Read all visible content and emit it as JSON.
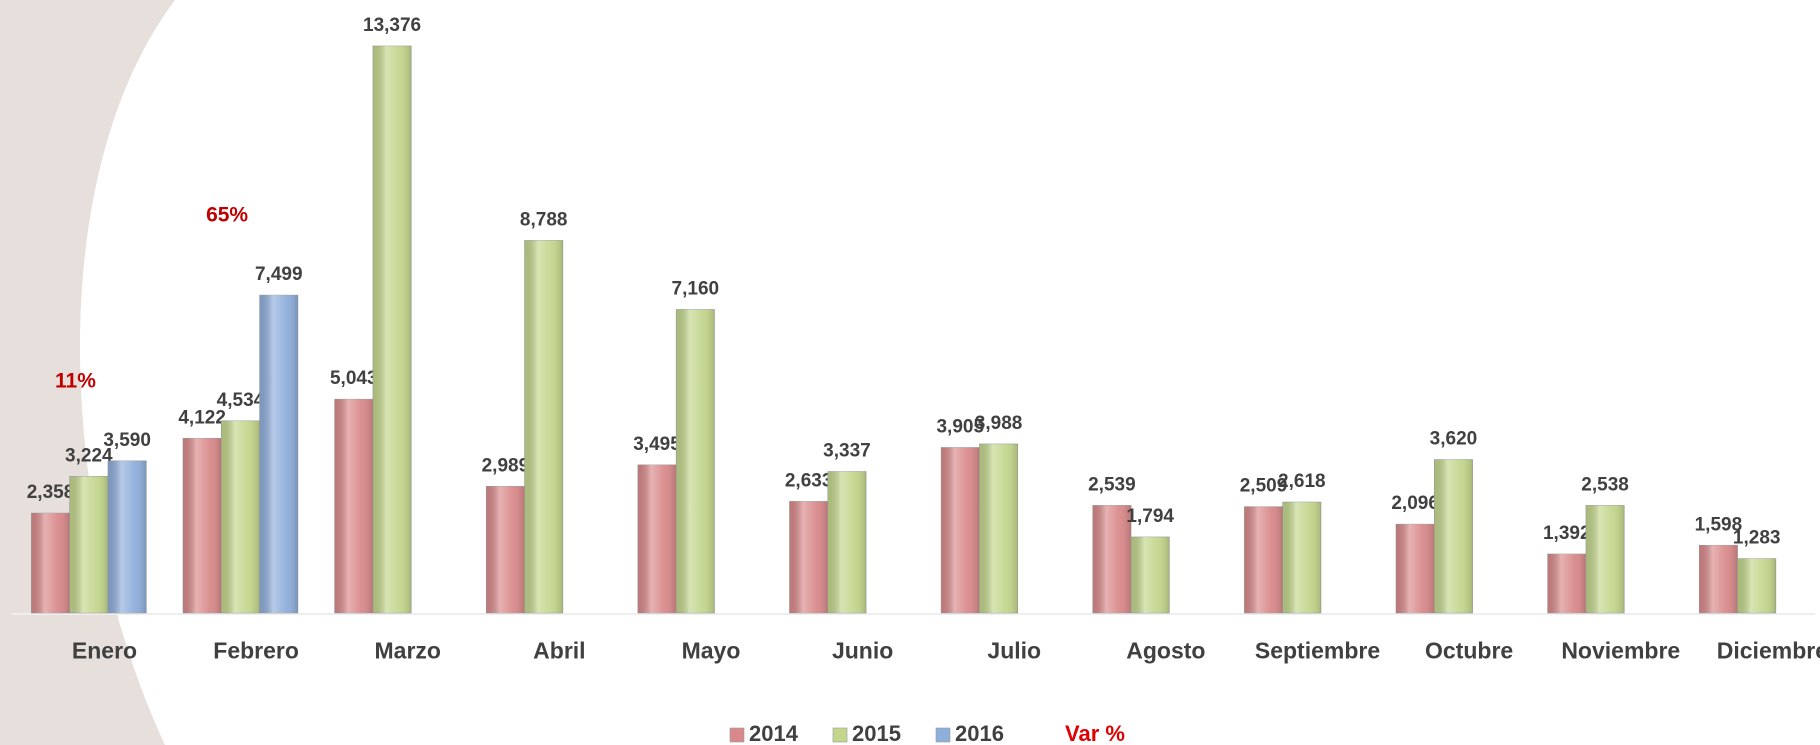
{
  "chart_data": {
    "type": "bar",
    "categories": [
      "Enero",
      "Febrero",
      "Marzo",
      "Abril",
      "Mayo",
      "Junio",
      "Julio",
      "Agosto",
      "Septiembre",
      "Octubre",
      "Noviembre",
      "Diciembre"
    ],
    "series": [
      {
        "name": "2014",
        "color": "#d9898a",
        "values": [
          2358,
          4122,
          5043,
          2989,
          3495,
          2633,
          3905,
          2539,
          2509,
          2096,
          1392,
          1598
        ],
        "value_labels": [
          "2,358",
          "4,122",
          "5,043",
          "2,989",
          "3,495",
          "2,633",
          "3,905",
          "2,539",
          "2,509",
          "2,096",
          "1,392",
          "1,598"
        ]
      },
      {
        "name": "2015",
        "color": "#c3d68c",
        "values": [
          3224,
          4534,
          13376,
          8788,
          7160,
          3337,
          3988,
          1794,
          2618,
          3620,
          2538,
          1283
        ],
        "value_labels": [
          "3,224",
          "4,534",
          "13,376",
          "8,788",
          "7,160",
          "3,337",
          "3,988",
          "1,794",
          "2,618",
          "3,620",
          "2,538",
          "1,283"
        ]
      },
      {
        "name": "2016",
        "color": "#8eaedb",
        "values": [
          3590,
          7499,
          null,
          null,
          null,
          null,
          null,
          null,
          null,
          null,
          null,
          null
        ],
        "value_labels": [
          "3,590",
          "7,499",
          null,
          null,
          null,
          null,
          null,
          null,
          null,
          null,
          null,
          null
        ]
      }
    ],
    "annotations": [
      {
        "category": "Enero",
        "text": "11%"
      },
      {
        "category": "Febrero",
        "text": "65%"
      }
    ],
    "legend_note": "Var %",
    "ylim": [
      0,
      14000
    ]
  }
}
